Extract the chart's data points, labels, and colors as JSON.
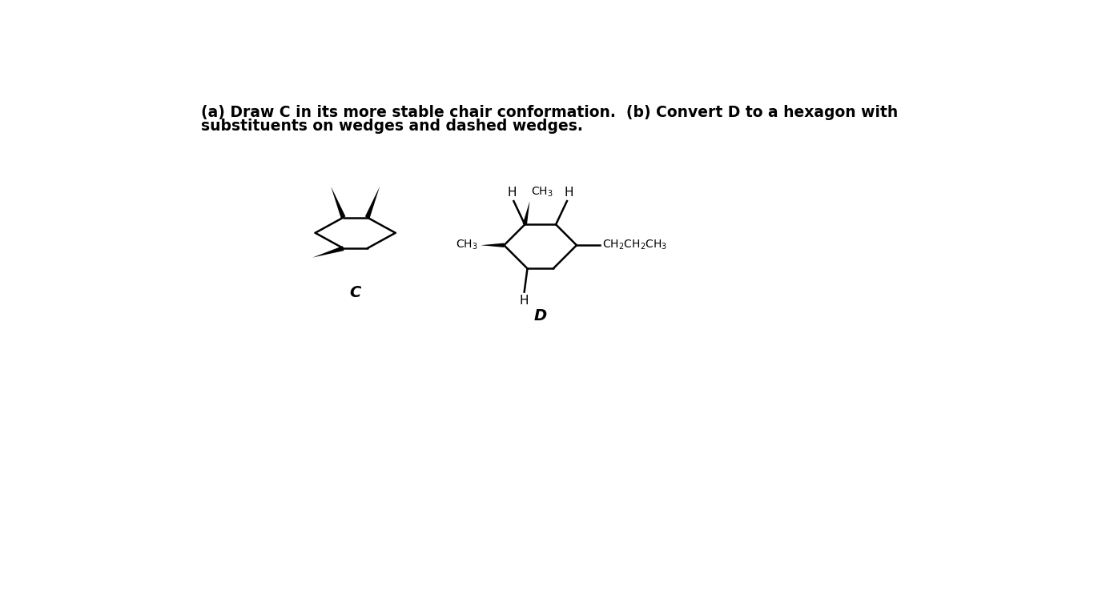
{
  "background_color": "#ffffff",
  "text_color": "#000000",
  "line_color": "#000000",
  "lw": 1.8,
  "wedge_lw": 0,
  "title_line1": "(a) Draw C in its more stable chair conformation.  (b) Convert D to a hexagon with",
  "title_line2": "substituents on wedges and dashed wedges.",
  "label_C": "C",
  "label_D": "D"
}
